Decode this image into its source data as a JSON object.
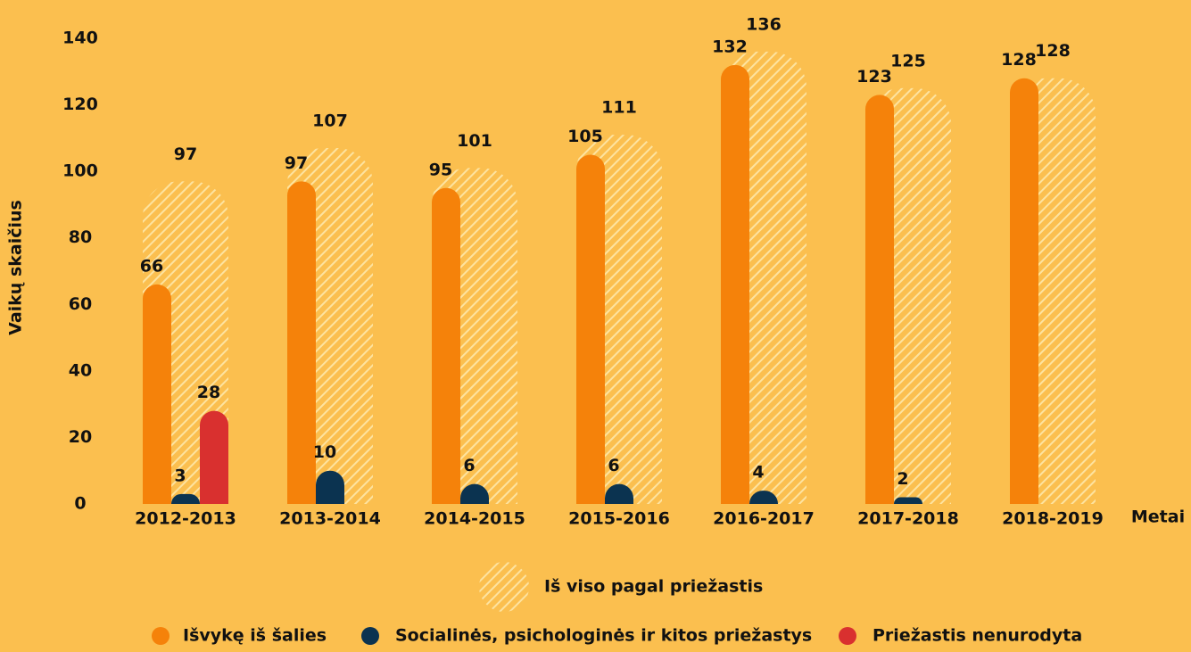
{
  "chart_data": {
    "type": "bar",
    "y_label": "Vaikų skaičius",
    "x_label": "Metai",
    "categories": [
      "2012-2013",
      "2013-2014",
      "2014-2015",
      "2015-2016",
      "2016-2017",
      "2017-2018",
      "2018-2019"
    ],
    "series": [
      {
        "name": "Iš viso pagal priežastis",
        "color": "#fde3a0",
        "pattern": "hatched",
        "values": [
          97,
          107,
          101,
          111,
          136,
          125,
          128
        ]
      },
      {
        "name": "Išvykę iš šalies",
        "color": "#f5820a",
        "values": [
          66,
          97,
          95,
          105,
          132,
          123,
          128
        ]
      },
      {
        "name": "Socialinės, psichologinės ir kitos priežastys",
        "color": "#0b3350",
        "values": [
          3,
          10,
          6,
          6,
          4,
          2,
          null
        ]
      },
      {
        "name": "Priežastis nenurodyta",
        "color": "#d9302f",
        "values": [
          28,
          null,
          null,
          null,
          null,
          null,
          null
        ]
      }
    ],
    "ylim": [
      0,
      140
    ],
    "yticks": [
      0,
      20,
      40,
      60,
      80,
      100,
      120,
      140
    ],
    "grid": false
  }
}
